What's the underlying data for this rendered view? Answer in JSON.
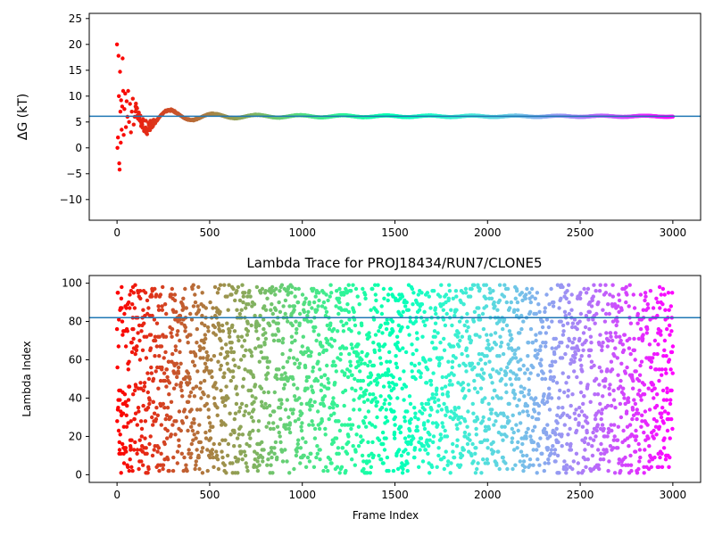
{
  "chart_data": [
    {
      "type": "scatter",
      "title": "",
      "xlabel": "",
      "ylabel": "ΔG (kT)",
      "xlim": [
        -150,
        3150
      ],
      "ylim": [
        -14,
        26
      ],
      "xticks": [
        0,
        500,
        1000,
        1500,
        2000,
        2500,
        3000
      ],
      "yticks": [
        -10,
        -5,
        0,
        5,
        10,
        15,
        20,
        25
      ],
      "hline": 6.1,
      "hline_color": "#1f77b4",
      "colormap": "rainbow (red at frame 0 → violet at frame 3000)",
      "grid": false,
      "legend": "none",
      "series": [
        {
          "description": "running free-energy estimate",
          "x_range": [
            0,
            3000
          ],
          "early_points": [
            [
              0,
              20
            ],
            [
              2,
              0
            ],
            [
              5,
              2
            ],
            [
              8,
              17.8
            ],
            [
              10,
              10
            ],
            [
              12,
              -3
            ],
            [
              14,
              -4.2
            ],
            [
              16,
              14.7
            ],
            [
              18,
              7
            ],
            [
              20,
              1
            ],
            [
              22,
              9.2
            ],
            [
              25,
              3.5
            ],
            [
              28,
              8
            ],
            [
              30,
              17.3
            ],
            [
              33,
              11
            ],
            [
              36,
              2.5
            ],
            [
              40,
              7.5
            ],
            [
              44,
              10.5
            ],
            [
              48,
              4
            ],
            [
              52,
              9
            ],
            [
              56,
              6
            ],
            [
              60,
              11
            ],
            [
              65,
              5
            ],
            [
              70,
              8.5
            ],
            [
              75,
              3
            ],
            [
              80,
              7
            ],
            [
              85,
              9.5
            ],
            [
              90,
              4.5
            ],
            [
              95,
              6
            ],
            [
              100,
              8
            ]
          ],
          "converged_value": 6.1
        }
      ]
    },
    {
      "type": "scatter",
      "title": "Lambda Trace for PROJ18434/RUN7/CLONE5",
      "xlabel": "Frame Index",
      "ylabel": "Lambda Index",
      "xlim": [
        -150,
        3150
      ],
      "ylim": [
        -4,
        104
      ],
      "xticks": [
        0,
        500,
        1000,
        1500,
        2000,
        2500,
        3000
      ],
      "yticks": [
        0,
        20,
        40,
        60,
        80,
        100
      ],
      "hline": 82,
      "hline_color": "#1f77b4",
      "colormap": "rainbow (red at frame 0 → violet at frame 3000)",
      "grid": false,
      "legend": "none",
      "series": [
        {
          "description": "lambda index per frame, roughly uniform over 1–99",
          "x_range": [
            0,
            3000
          ],
          "y_range": [
            1,
            99
          ],
          "n_points": 3000
        }
      ]
    }
  ]
}
